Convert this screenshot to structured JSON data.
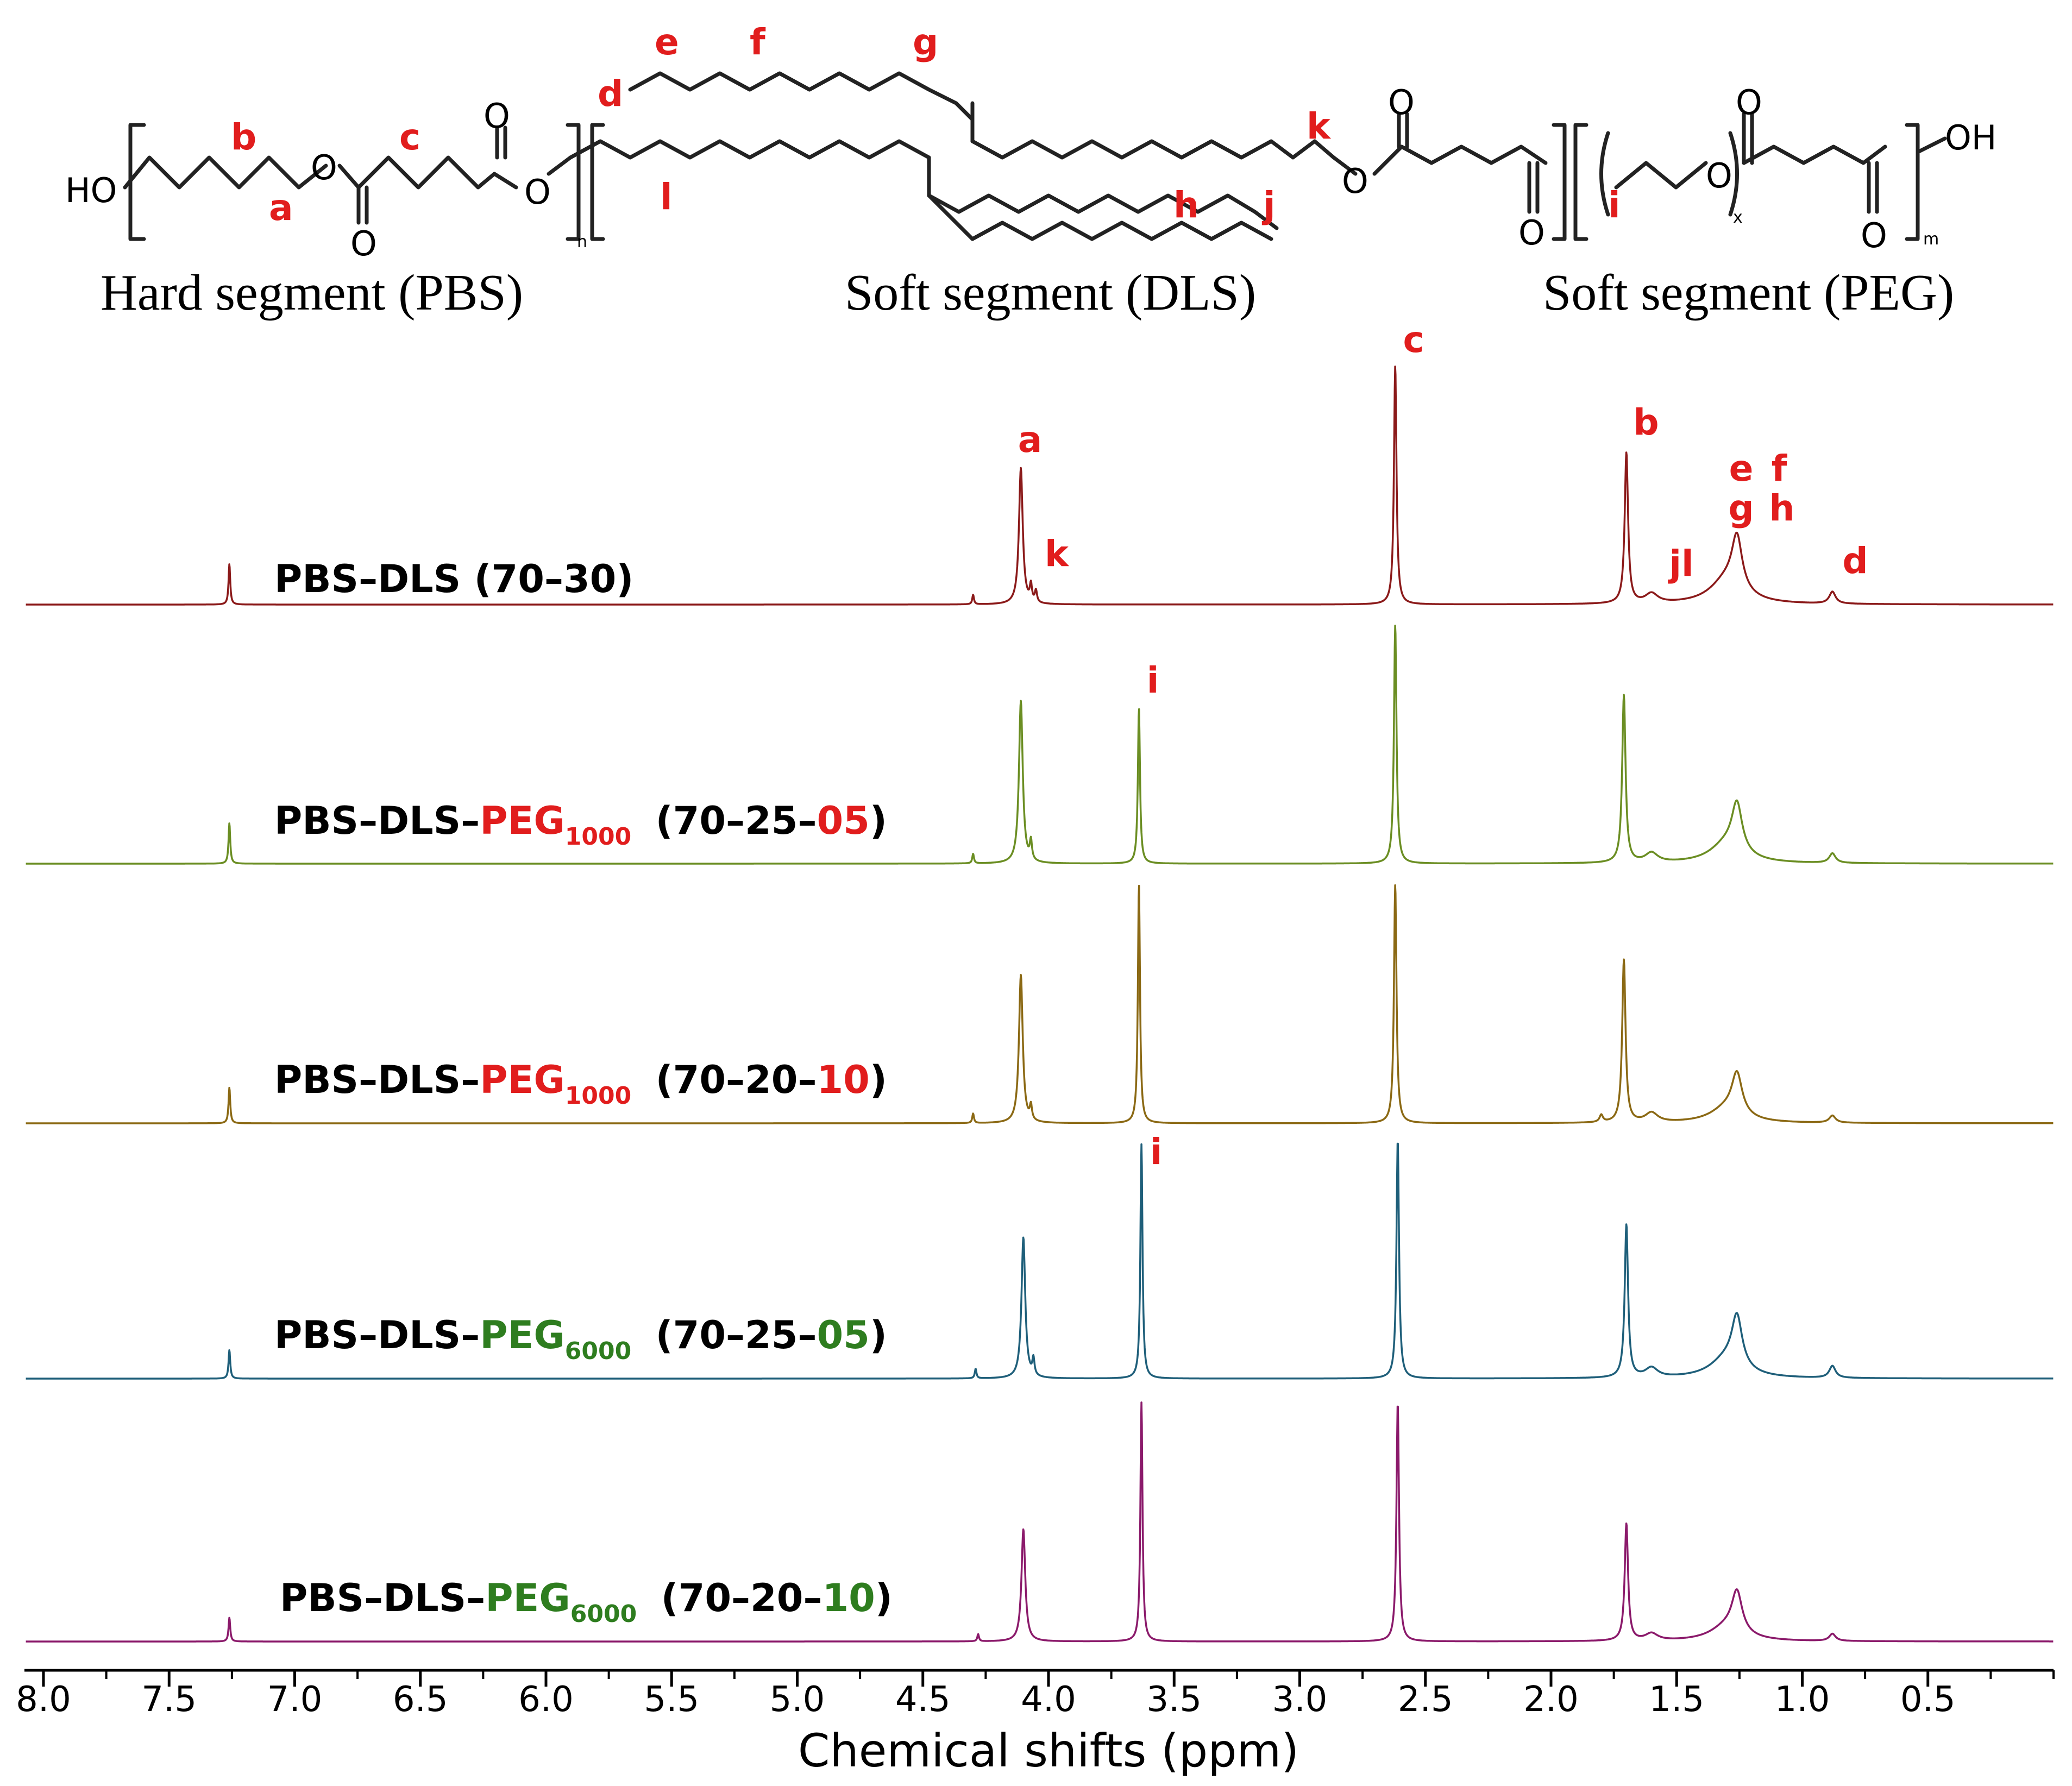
{
  "structure": {
    "segments": [
      "Hard segment (PBS)",
      "Soft segment (DLS)",
      "Soft segment (PEG)"
    ],
    "atoms": {
      "ho": "HO",
      "oh": "OH",
      "o": "O"
    },
    "subscripts": {
      "n": "n",
      "x": "x",
      "m": "m"
    },
    "labels": [
      "a",
      "b",
      "c",
      "d",
      "e",
      "f",
      "g",
      "h",
      "i",
      "j",
      "k",
      "l"
    ]
  },
  "chart_data": {
    "type": "line",
    "title": "",
    "xlabel": "Chemical shifts (ppm)",
    "ylabel": "",
    "xlim": [
      8.0,
      0.0
    ],
    "x_reversed": true,
    "xticks": [
      8.0,
      7.5,
      7.0,
      6.5,
      6.0,
      5.5,
      5.0,
      4.5,
      4.0,
      3.5,
      3.0,
      2.5,
      2.0,
      1.5,
      1.0,
      0.5
    ],
    "xtick_labels": [
      "8.0",
      "7.5",
      "7.0",
      "6.5",
      "6.0",
      "5.5",
      "5.0",
      "4.5",
      "4.0",
      "3.5",
      "3.0",
      "2.5",
      "2.0",
      "1.5",
      "1.0",
      "0.5"
    ],
    "y_unit": "relative intensity (each spectrum normalized to its tallest peak = 1.0)",
    "series": [
      {
        "label": {
          "pre": "PBS–DLS (70–30)",
          "peg": "",
          "sub": "",
          "ratio_pre": "",
          "ratio_last": "",
          "ratio_post": ""
        },
        "color": "#8b1a1a",
        "peaks": [
          {
            "ppm": 7.26,
            "h": 0.17,
            "w": 0.004
          },
          {
            "ppm": 4.3,
            "h": 0.04,
            "w": 0.004
          },
          {
            "ppm": 4.11,
            "h": 0.57,
            "w": 0.009
          },
          {
            "ppm": 4.07,
            "h": 0.07,
            "w": 0.005
          },
          {
            "ppm": 4.05,
            "h": 0.05,
            "w": 0.005
          },
          {
            "ppm": 2.62,
            "h": 1.0,
            "w": 0.006
          },
          {
            "ppm": 1.7,
            "h": 0.63,
            "w": 0.008
          },
          {
            "ppm": 1.6,
            "h": 0.04,
            "w": 0.03
          },
          {
            "ppm": 1.26,
            "h": 0.22,
            "w": 0.025
          },
          {
            "ppm": 1.3,
            "h": 0.1,
            "w": 0.08
          },
          {
            "ppm": 0.88,
            "h": 0.05,
            "w": 0.015
          }
        ]
      },
      {
        "label": {
          "pre": "PBS–DLS–",
          "peg": "PEG",
          "sub": "1000",
          "ratio_pre": "(70–25–",
          "ratio_last": "05",
          "ratio_post": ")"
        },
        "color": "#6b8e23",
        "peaks": [
          {
            "ppm": 7.26,
            "h": 0.17,
            "w": 0.004
          },
          {
            "ppm": 4.3,
            "h": 0.04,
            "w": 0.004
          },
          {
            "ppm": 4.11,
            "h": 0.68,
            "w": 0.009
          },
          {
            "ppm": 4.07,
            "h": 0.08,
            "w": 0.005
          },
          {
            "ppm": 3.64,
            "h": 0.65,
            "w": 0.005
          },
          {
            "ppm": 2.62,
            "h": 1.0,
            "w": 0.006
          },
          {
            "ppm": 1.71,
            "h": 0.7,
            "w": 0.008
          },
          {
            "ppm": 1.6,
            "h": 0.04,
            "w": 0.03
          },
          {
            "ppm": 1.26,
            "h": 0.2,
            "w": 0.025
          },
          {
            "ppm": 1.3,
            "h": 0.08,
            "w": 0.08
          },
          {
            "ppm": 0.88,
            "h": 0.04,
            "w": 0.015
          }
        ]
      },
      {
        "label": {
          "pre": "PBS–DLS–",
          "peg": "PEG",
          "sub": "1000",
          "ratio_pre": "(70–20–",
          "ratio_last": "10",
          "ratio_post": ")"
        },
        "color": "#8b6914",
        "peaks": [
          {
            "ppm": 7.26,
            "h": 0.15,
            "w": 0.004
          },
          {
            "ppm": 4.3,
            "h": 0.04,
            "w": 0.004
          },
          {
            "ppm": 4.11,
            "h": 0.62,
            "w": 0.009
          },
          {
            "ppm": 4.07,
            "h": 0.06,
            "w": 0.005
          },
          {
            "ppm": 3.64,
            "h": 1.0,
            "w": 0.005
          },
          {
            "ppm": 2.62,
            "h": 1.0,
            "w": 0.006
          },
          {
            "ppm": 1.8,
            "h": 0.03,
            "w": 0.008
          },
          {
            "ppm": 1.71,
            "h": 0.68,
            "w": 0.008
          },
          {
            "ppm": 1.6,
            "h": 0.04,
            "w": 0.03
          },
          {
            "ppm": 1.26,
            "h": 0.17,
            "w": 0.025
          },
          {
            "ppm": 1.3,
            "h": 0.06,
            "w": 0.08
          },
          {
            "ppm": 0.88,
            "h": 0.03,
            "w": 0.015
          }
        ]
      },
      {
        "label": {
          "pre": "PBS–DLS–",
          "peg": "PEG",
          "sub": "6000",
          "ratio_pre": "(70–25–",
          "ratio_last": "05",
          "ratio_post": ")"
        },
        "color": "#1f5f7a",
        "peaks": [
          {
            "ppm": 7.26,
            "h": 0.12,
            "w": 0.004
          },
          {
            "ppm": 4.29,
            "h": 0.04,
            "w": 0.004
          },
          {
            "ppm": 4.1,
            "h": 0.59,
            "w": 0.009
          },
          {
            "ppm": 4.06,
            "h": 0.07,
            "w": 0.005
          },
          {
            "ppm": 3.63,
            "h": 0.98,
            "w": 0.005
          },
          {
            "ppm": 2.61,
            "h": 1.0,
            "w": 0.006
          },
          {
            "ppm": 1.7,
            "h": 0.64,
            "w": 0.008
          },
          {
            "ppm": 1.6,
            "h": 0.04,
            "w": 0.03
          },
          {
            "ppm": 1.26,
            "h": 0.21,
            "w": 0.025
          },
          {
            "ppm": 1.3,
            "h": 0.08,
            "w": 0.08
          },
          {
            "ppm": 0.88,
            "h": 0.05,
            "w": 0.015
          }
        ]
      },
      {
        "label": {
          "pre": "PBS–DLS–",
          "peg": "PEG",
          "sub": "6000",
          "ratio_pre": "(70–20–",
          "ratio_last": "10",
          "ratio_post": ")"
        },
        "color": "#8b1a6b",
        "peaks": [
          {
            "ppm": 7.26,
            "h": 0.1,
            "w": 0.004
          },
          {
            "ppm": 4.28,
            "h": 0.03,
            "w": 0.004
          },
          {
            "ppm": 4.1,
            "h": 0.47,
            "w": 0.009
          },
          {
            "ppm": 3.63,
            "h": 1.0,
            "w": 0.005
          },
          {
            "ppm": 2.61,
            "h": 1.0,
            "w": 0.006
          },
          {
            "ppm": 1.7,
            "h": 0.49,
            "w": 0.008
          },
          {
            "ppm": 1.6,
            "h": 0.03,
            "w": 0.03
          },
          {
            "ppm": 1.26,
            "h": 0.17,
            "w": 0.025
          },
          {
            "ppm": 1.3,
            "h": 0.06,
            "w": 0.08
          },
          {
            "ppm": 0.88,
            "h": 0.03,
            "w": 0.015
          }
        ]
      }
    ],
    "peak_annotations": [
      {
        "label": "c",
        "ppm": 2.62,
        "series": 0
      },
      {
        "label": "a",
        "ppm": 4.13,
        "series": 0
      },
      {
        "label": "k",
        "ppm": 4.05,
        "series": 0
      },
      {
        "label": "b",
        "ppm": 1.7,
        "series": 0
      },
      {
        "label": "jl",
        "ppm": 1.56,
        "series": 0
      },
      {
        "label": "e",
        "ppm": 1.33,
        "series": 0
      },
      {
        "label": "f",
        "ppm": 1.2,
        "series": 0
      },
      {
        "label": "g",
        "ppm": 1.33,
        "series": 0
      },
      {
        "label": "h",
        "ppm": 1.2,
        "series": 0
      },
      {
        "label": "d",
        "ppm": 0.88,
        "series": 0
      },
      {
        "label": "i",
        "ppm": 3.64,
        "series": 1
      },
      {
        "label": "i",
        "ppm": 3.63,
        "series": 3
      }
    ],
    "label_colors": {
      "peg1000": "#e11d1d",
      "peg6000": "#2e7d1f",
      "annotation": "#e11d1d"
    }
  }
}
